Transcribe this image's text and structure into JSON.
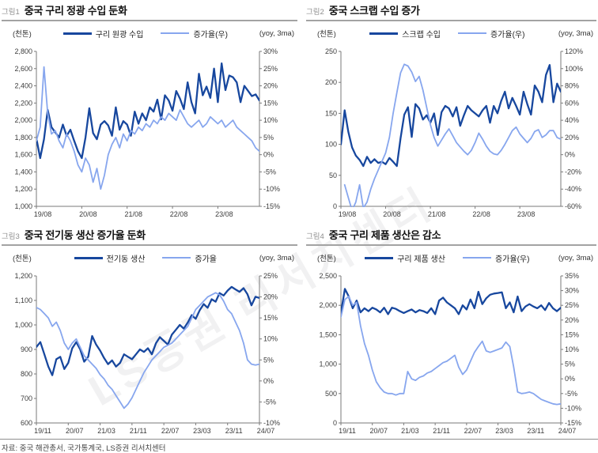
{
  "footer": {
    "source": "자료: 중국 해관총서, 국가통계국, LS증권 리서치센터"
  },
  "watermark": "LS증권 리서치센터",
  "colors": {
    "series_dark": "#17479e",
    "series_light": "#87a6ee",
    "axis": "#7a7a7a",
    "tick_text": "#3c3c3c"
  },
  "chart_data": [
    {
      "type": "line",
      "fig_label": "그림1",
      "title": "중국 구리 정광 수입 둔화",
      "left_unit": "(천톤)",
      "right_unit": "(yoy, 3ma)",
      "x_tick_labels": [
        "19/08",
        "20/08",
        "21/08",
        "22/08",
        "23/08"
      ],
      "x_tick_indices": [
        0,
        12,
        24,
        36,
        48
      ],
      "n_points": 60,
      "left_axis": {
        "min": 1000,
        "max": 2800,
        "step": 200
      },
      "right_axis": {
        "min": -15,
        "max": 30,
        "step": 5,
        "suffix": "%"
      },
      "series": [
        {
          "name": "구리 원광 수입",
          "axis": "left",
          "color": "dark",
          "values": [
            1790,
            1560,
            1780,
            2120,
            1920,
            1860,
            1800,
            1950,
            1820,
            1890,
            1760,
            1640,
            1560,
            1800,
            2140,
            1850,
            1780,
            1950,
            1990,
            1940,
            1820,
            2150,
            1890,
            1990,
            1950,
            1820,
            2100,
            1960,
            2080,
            2000,
            2150,
            2100,
            2240,
            2010,
            2290,
            2230,
            2110,
            2340,
            2250,
            2130,
            2440,
            2210,
            2080,
            2540,
            2290,
            2390,
            2260,
            2600,
            2210,
            2660,
            2350,
            2520,
            2500,
            2440,
            2210,
            2400,
            2340,
            2280,
            2300,
            2230
          ]
        },
        {
          "name": "증가율(우)",
          "axis": "right",
          "color": "light",
          "values": [
            4,
            8,
            25.5,
            12,
            6,
            7,
            4,
            2,
            6,
            4,
            1,
            -3,
            -5,
            -1,
            -3,
            -8,
            -4,
            -10,
            -6,
            0,
            3,
            5,
            2,
            6,
            4,
            7,
            6,
            8,
            7,
            9,
            8,
            10,
            9,
            11,
            10,
            12,
            11,
            10,
            13,
            11,
            9,
            8,
            9,
            10,
            8,
            9,
            11,
            10,
            9,
            10,
            8,
            9,
            10,
            8,
            7,
            6,
            5,
            4,
            2,
            1
          ]
        }
      ]
    },
    {
      "type": "line",
      "fig_label": "그림2",
      "title": "중국 스크랩 수입 증가",
      "left_unit": "(천톤)",
      "right_unit": "(yoy, 3ma)",
      "x_tick_labels": [
        "19/08",
        "20/08",
        "21/08",
        "22/08",
        "23/08"
      ],
      "x_tick_indices": [
        0,
        12,
        24,
        36,
        48
      ],
      "n_points": 60,
      "left_axis": {
        "min": 0,
        "max": 250,
        "step": 50
      },
      "right_axis": {
        "min": -60,
        "max": 120,
        "step": 20,
        "suffix": "%"
      },
      "series": [
        {
          "name": "스크랩 수입",
          "axis": "left",
          "color": "dark",
          "values": [
            100,
            155,
            120,
            95,
            82,
            75,
            65,
            80,
            70,
            76,
            70,
            72,
            68,
            78,
            72,
            65,
            110,
            148,
            160,
            112,
            165,
            158,
            140,
            147,
            135,
            150,
            115,
            152,
            162,
            158,
            145,
            160,
            130,
            147,
            162,
            155,
            150,
            145,
            155,
            162,
            135,
            162,
            150,
            170,
            185,
            158,
            175,
            162,
            148,
            185,
            165,
            148,
            195,
            185,
            168,
            212,
            228,
            168,
            198,
            185
          ]
        },
        {
          "name": "증가율(우)",
          "axis": "right",
          "color": "light",
          "values": [
            null,
            -35,
            -50,
            -65,
            -55,
            -35,
            -62,
            -55,
            -40,
            -28,
            -18,
            -8,
            2,
            20,
            48,
            72,
            95,
            105,
            103,
            96,
            85,
            91,
            75,
            55,
            35,
            20,
            10,
            17,
            24,
            30,
            22,
            14,
            9,
            4,
            0,
            5,
            14,
            25,
            18,
            10,
            4,
            1,
            0,
            5,
            12,
            20,
            28,
            32,
            24,
            19,
            14,
            19,
            27,
            29,
            20,
            23,
            28,
            28,
            20,
            18
          ]
        }
      ]
    },
    {
      "type": "line",
      "fig_label": "그림3",
      "title": "중국 전기동 생산 증가율 둔화",
      "left_unit": "(천톤)",
      "right_unit": "(yoy, 3ma)",
      "x_tick_labels": [
        "19/11",
        "20/07",
        "21/03",
        "21/11",
        "22/07",
        "23/03",
        "23/11",
        "24/07"
      ],
      "x_tick_indices": [
        0,
        8,
        16,
        24,
        32,
        40,
        48,
        56
      ],
      "n_points": 57,
      "left_axis": {
        "min": 600,
        "max": 1200,
        "step": 100
      },
      "right_axis": {
        "min": -10,
        "max": 25,
        "step": 5,
        "suffix": "%"
      },
      "series": [
        {
          "name": "전기동 생산",
          "axis": "left",
          "color": "dark",
          "values": [
            910,
            930,
            880,
            830,
            795,
            860,
            870,
            820,
            845,
            905,
            930,
            900,
            850,
            870,
            955,
            920,
            895,
            865,
            840,
            855,
            830,
            845,
            880,
            870,
            860,
            880,
            900,
            890,
            905,
            880,
            925,
            950,
            935,
            920,
            960,
            980,
            1000,
            985,
            1010,
            1040,
            1025,
            1060,
            1085,
            1070,
            1105,
            1095,
            1130,
            1120,
            1140,
            1155,
            1145,
            1135,
            1150,
            1125,
            1080,
            1115,
            1110
          ]
        },
        {
          "name": "증가율",
          "axis": "right",
          "color": "light",
          "values": [
            17.5,
            17,
            16,
            15,
            13,
            14,
            12,
            9,
            7.5,
            9,
            10,
            8,
            6,
            5,
            4,
            3,
            1.5,
            0.5,
            -1,
            -2,
            -3.5,
            -5,
            -6.5,
            -5.5,
            -4,
            -2,
            0,
            2,
            3.5,
            5,
            6,
            7,
            8,
            8.5,
            9,
            10,
            11,
            12,
            13,
            15,
            17,
            18,
            19,
            20,
            20.5,
            21,
            20.5,
            19,
            17,
            16,
            14,
            12,
            9,
            5,
            4,
            3.8,
            4
          ]
        }
      ]
    },
    {
      "type": "line",
      "fig_label": "그림4",
      "title": "중국 구리 제품 생산은 감소",
      "left_unit": "(천톤)",
      "right_unit": "(yoy, 3ma)",
      "x_tick_labels": [
        "19/11",
        "20/07",
        "21/03",
        "21/11",
        "22/07",
        "23/03",
        "23/11",
        "24/07"
      ],
      "x_tick_indices": [
        0,
        8,
        16,
        24,
        32,
        40,
        48,
        56
      ],
      "n_points": 57,
      "left_axis": {
        "min": 0,
        "max": 2500,
        "step": 500
      },
      "right_axis": {
        "min": -15,
        "max": 35,
        "step": 5,
        "suffix": "%"
      },
      "series": [
        {
          "name": "구리 제품 생산",
          "axis": "left",
          "color": "dark",
          "values": [
            1870,
            2280,
            2150,
            1950,
            2080,
            1880,
            1950,
            1900,
            1960,
            1930,
            1880,
            1960,
            1850,
            1960,
            1940,
            1900,
            1870,
            1900,
            1930,
            1880,
            1920,
            1900,
            1870,
            1950,
            1850,
            2080,
            2130,
            2050,
            2000,
            1950,
            1850,
            2000,
            1930,
            2100,
            1950,
            2230,
            2020,
            2120,
            2180,
            2200,
            2210,
            2220,
            1950,
            2050,
            1880,
            2150,
            1900,
            1980,
            2020,
            1980,
            1950,
            2000,
            1920,
            2040,
            1950,
            1900,
            1960
          ]
        },
        {
          "name": "증가율(우)",
          "axis": "right",
          "color": "light",
          "values": [
            21,
            27,
            28,
            25,
            26,
            18,
            12,
            8,
            3,
            -1,
            -3,
            -4.5,
            -5,
            -5,
            -5.5,
            -5,
            -5,
            2.5,
            0,
            -0.5,
            0.5,
            1,
            2,
            2.5,
            3.5,
            4.5,
            5.5,
            6,
            7,
            8,
            4,
            1.5,
            3,
            6,
            9,
            11,
            12.8,
            9.5,
            9,
            9.5,
            10,
            10.5,
            12.5,
            11,
            4,
            -4.5,
            -5,
            -4.8,
            -4.5,
            -5,
            -6,
            -7,
            -7.5,
            -8,
            -8.5,
            -8.7,
            -8.5
          ]
        }
      ]
    }
  ]
}
